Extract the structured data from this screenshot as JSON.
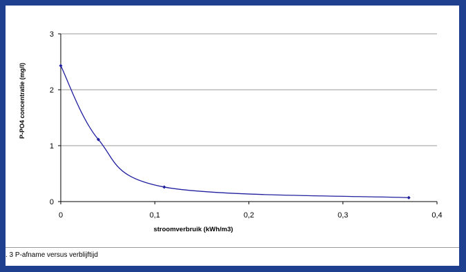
{
  "chart_data": {
    "type": "line",
    "smooth": true,
    "xlabel": "stroomverbruik (kWh/m3)",
    "ylabel": "P-PO4 concentratie (mg/l)",
    "xlim": [
      0,
      0.4
    ],
    "ylim": [
      0,
      3
    ],
    "xticks": [
      "0",
      "0,1",
      "0,2",
      "0,3",
      "0,4"
    ],
    "yticks": [
      "0",
      "1",
      "2",
      "3"
    ],
    "grid": "horizontal",
    "series": [
      {
        "color": "#1f1f9f",
        "x": [
          0,
          0.04,
          0.11,
          0.37
        ],
        "y": [
          2.43,
          1.11,
          0.26,
          0.07
        ]
      }
    ]
  },
  "caption": ". 3 P-afname versus verblijftijd"
}
